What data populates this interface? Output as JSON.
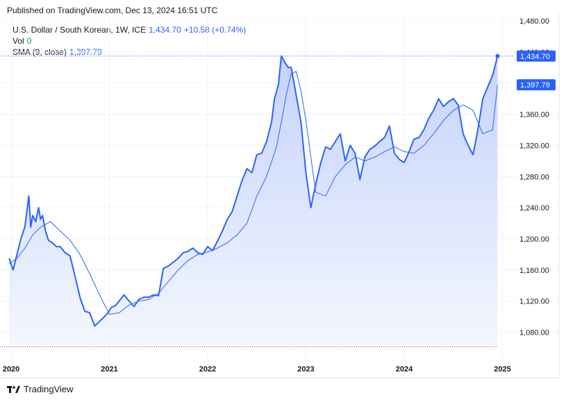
{
  "header": {
    "published": "Published on TradingView.com, Dec 13, 2024 16:51 UTC"
  },
  "legend": {
    "symbol": "U.S. Dollar / South Korean, 1W, ICE",
    "last": "1,434.70",
    "change": "+10.58 (+0.74%)",
    "vol_label": "Vol",
    "vol_value": "0",
    "sma_label": "SMA (9, close)",
    "sma_value": "1,397.79"
  },
  "badges": {
    "price": "1,434.70",
    "sma": "1,397.79"
  },
  "footer": {
    "brand": "TradingView"
  },
  "colors": {
    "price_line": "#2962ff",
    "sma_line": "#2962ff",
    "area_fill_top": "#c5d3fb",
    "area_fill_bottom": "#f4f7fe",
    "grid": "#f0f3fa"
  },
  "chart_data": {
    "type": "area",
    "yticks": [
      "1,480.00",
      "1,440.00",
      "1,400.00",
      "1,360.00",
      "1,320.00",
      "1,280.00",
      "1,240.00",
      "1,200.00",
      "1,160.00",
      "1,120.00",
      "1,080.00"
    ],
    "xticks": [
      "2020",
      "2021",
      "2022",
      "2023",
      "2024",
      "2025"
    ],
    "ylim": [
      1060,
      1480
    ],
    "xlim": [
      2020.0,
      2025.05
    ],
    "grid": true,
    "series": [
      {
        "kind": "price",
        "x": [
          2019.98,
          2020.02,
          2020.06,
          2020.1,
          2020.14,
          2020.18,
          2020.2,
          2020.22,
          2020.25,
          2020.28,
          2020.3,
          2020.32,
          2020.35,
          2020.38,
          2020.42,
          2020.46,
          2020.5,
          2020.55,
          2020.6,
          2020.65,
          2020.7,
          2020.75,
          2020.8,
          2020.85,
          2020.9,
          2020.95,
          2020.98,
          2021.02,
          2021.06,
          2021.1,
          2021.15,
          2021.2,
          2021.25,
          2021.3,
          2021.35,
          2021.4,
          2021.45,
          2021.5,
          2021.55,
          2021.6,
          2021.65,
          2021.7,
          2021.75,
          2021.8,
          2021.85,
          2021.9,
          2021.95,
          2022.0,
          2022.05,
          2022.1,
          2022.15,
          2022.2,
          2022.25,
          2022.3,
          2022.35,
          2022.4,
          2022.45,
          2022.5,
          2022.55,
          2022.6,
          2022.65,
          2022.68,
          2022.72,
          2022.75,
          2022.78,
          2022.82,
          2022.85,
          2022.9,
          2022.95,
          2023.0,
          2023.05,
          2023.1,
          2023.15,
          2023.2,
          2023.25,
          2023.3,
          2023.35,
          2023.4,
          2023.45,
          2023.5,
          2023.55,
          2023.6,
          2023.65,
          2023.7,
          2023.75,
          2023.8,
          2023.85,
          2023.9,
          2023.95,
          2024.0,
          2024.05,
          2024.1,
          2024.15,
          2024.2,
          2024.25,
          2024.3,
          2024.35,
          2024.4,
          2024.45,
          2024.5,
          2024.55,
          2024.6,
          2024.65,
          2024.7,
          2024.75,
          2024.8,
          2024.85,
          2024.9,
          2024.95
        ],
        "y": [
          1175,
          1160,
          1180,
          1200,
          1215,
          1255,
          1215,
          1230,
          1222,
          1240,
          1225,
          1230,
          1210,
          1198,
          1195,
          1190,
          1190,
          1182,
          1178,
          1152,
          1125,
          1107,
          1105,
          1088,
          1094,
          1100,
          1104,
          1112,
          1114,
          1120,
          1128,
          1120,
          1113,
          1122,
          1125,
          1125,
          1128,
          1127,
          1162,
          1165,
          1170,
          1175,
          1182,
          1184,
          1188,
          1182,
          1180,
          1190,
          1185,
          1197,
          1210,
          1225,
          1235,
          1255,
          1275,
          1290,
          1285,
          1308,
          1310,
          1325,
          1350,
          1380,
          1398,
          1435,
          1428,
          1420,
          1420,
          1385,
          1350,
          1285,
          1240,
          1270,
          1297,
          1318,
          1315,
          1325,
          1335,
          1300,
          1320,
          1310,
          1276,
          1305,
          1315,
          1319,
          1325,
          1330,
          1345,
          1310,
          1302,
          1298,
          1312,
          1328,
          1330,
          1340,
          1355,
          1365,
          1380,
          1370,
          1376,
          1380,
          1372,
          1335,
          1320,
          1308,
          1340,
          1380,
          1395,
          1410,
          1434.7
        ]
      },
      {
        "kind": "sma",
        "x": [
          2019.98,
          2020.06,
          2020.14,
          2020.22,
          2020.3,
          2020.4,
          2020.5,
          2020.6,
          2020.7,
          2020.8,
          2020.9,
          2021.0,
          2021.1,
          2021.2,
          2021.3,
          2021.4,
          2021.5,
          2021.6,
          2021.7,
          2021.8,
          2021.9,
          2022.0,
          2022.1,
          2022.2,
          2022.3,
          2022.4,
          2022.5,
          2022.6,
          2022.7,
          2022.75,
          2022.8,
          2022.85,
          2022.9,
          2022.95,
          2023.0,
          2023.05,
          2023.1,
          2023.2,
          2023.3,
          2023.4,
          2023.5,
          2023.6,
          2023.7,
          2023.8,
          2023.9,
          2024.0,
          2024.1,
          2024.2,
          2024.3,
          2024.4,
          2024.5,
          2024.6,
          2024.7,
          2024.8,
          2024.9,
          2024.95
        ],
        "y": [
          1168,
          1175,
          1188,
          1205,
          1215,
          1222,
          1210,
          1198,
          1180,
          1155,
          1128,
          1103,
          1105,
          1115,
          1120,
          1122,
          1130,
          1145,
          1160,
          1172,
          1180,
          1183,
          1188,
          1195,
          1205,
          1220,
          1255,
          1280,
          1318,
          1350,
          1385,
          1412,
          1415,
          1390,
          1352,
          1305,
          1260,
          1255,
          1280,
          1295,
          1305,
          1300,
          1305,
          1312,
          1318,
          1312,
          1310,
          1320,
          1335,
          1352,
          1365,
          1372,
          1365,
          1335,
          1340,
          1397.79
        ]
      }
    ]
  }
}
